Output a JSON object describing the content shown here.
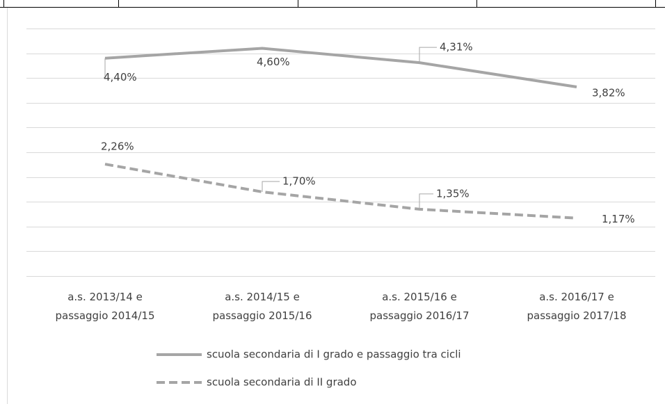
{
  "chart_data": {
    "type": "line",
    "categories": [
      [
        "a.s. 2013/14 e",
        "passaggio 2014/15"
      ],
      [
        "a.s. 2014/15 e",
        "passaggio 2015/16"
      ],
      [
        "a.s. 2015/16 e",
        "passaggio 2016/17"
      ],
      [
        "a.s. 2016/17 e",
        "passaggio 2017/18"
      ]
    ],
    "series": [
      {
        "name": "scuola secondaria di I grado e passaggio tra cicli",
        "color": "#a5a5a5",
        "dash": false,
        "values": [
          4.4,
          4.6,
          4.31,
          3.82
        ],
        "value_labels": [
          "4,40%",
          "4,60%",
          "4,31%",
          "3,82%"
        ]
      },
      {
        "name": "scuola secondaria di II grado",
        "color": "#a5a5a5",
        "dash": true,
        "values": [
          2.26,
          1.7,
          1.35,
          1.17
        ],
        "value_labels": [
          "2,26%",
          "1,70%",
          "1,35%",
          "1,17%"
        ]
      }
    ],
    "ylim": [
      0,
      5
    ],
    "yticks": [
      0,
      0.5,
      1,
      1.5,
      2,
      2.5,
      3,
      3.5,
      4,
      4.5,
      5
    ],
    "grid": true
  }
}
